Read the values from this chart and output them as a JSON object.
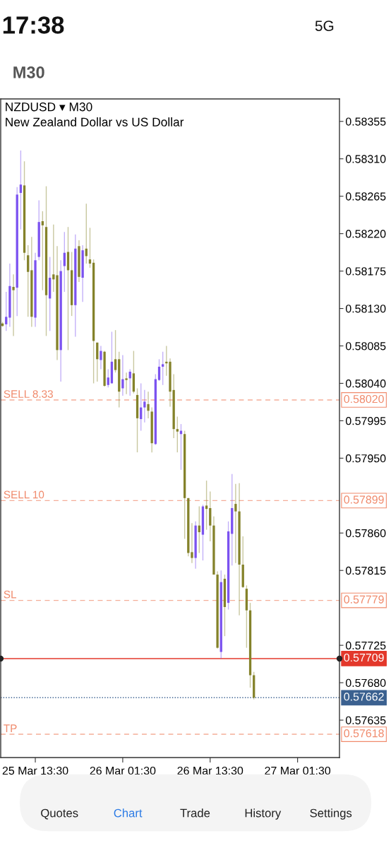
{
  "chart_data": {
    "type": "candlestick",
    "title": "NZDUSD ▾ M30",
    "subtitle": "New Zealand Dollar vs US Dollar",
    "categories": [
      null,
      null,
      null,
      null,
      null,
      null,
      null,
      null,
      null,
      "25 Mar 13:30",
      null,
      null,
      null,
      null,
      null,
      null,
      null,
      null,
      null,
      null,
      null,
      null,
      null,
      null,
      null,
      null,
      null,
      null,
      null,
      null,
      null,
      null,
      null,
      "26 Mar 01:30",
      null,
      null,
      null,
      null,
      null,
      null,
      null,
      null,
      null,
      null,
      null,
      null,
      null,
      null,
      null,
      null,
      null,
      null,
      null,
      null,
      null,
      null,
      null,
      "26 Mar 13:30",
      null,
      null,
      null,
      null,
      null,
      null,
      null,
      null,
      null,
      null,
      null,
      null,
      null,
      null,
      null,
      null,
      null,
      null,
      null,
      null,
      null,
      null,
      null,
      "27 Mar 01:30",
      null,
      null,
      null,
      null,
      null,
      null,
      null,
      null,
      null,
      null,
      null
    ],
    "ohlc": [
      [
        0.58112,
        0.58114,
        0.58108,
        0.58109
      ],
      [
        0.58111,
        0.5815,
        0.58103,
        0.5812
      ],
      [
        0.58119,
        0.58184,
        0.58108,
        0.58157
      ],
      [
        0.58156,
        0.58171,
        0.58097,
        0.58152
      ],
      [
        0.58155,
        0.58276,
        0.58121,
        0.58267
      ],
      [
        0.58269,
        0.5832,
        0.58225,
        0.58279
      ],
      [
        0.58278,
        0.58307,
        0.58188,
        0.58197
      ],
      [
        0.58194,
        0.58206,
        0.5812,
        0.58174
      ],
      [
        0.58176,
        0.58216,
        0.58108,
        0.5812
      ],
      [
        0.58119,
        0.58197,
        0.58108,
        0.58188
      ],
      [
        0.58192,
        0.5826,
        0.58188,
        0.58234
      ],
      [
        0.58235,
        0.58247,
        0.58152,
        0.5823
      ],
      [
        0.58228,
        0.58277,
        0.58097,
        0.58146
      ],
      [
        0.58142,
        0.58192,
        0.58103,
        0.58167
      ],
      [
        0.58171,
        0.58231,
        0.5815,
        0.58165
      ],
      [
        0.5817,
        0.58205,
        0.58068,
        0.5808
      ],
      [
        0.5808,
        0.58188,
        0.58042,
        0.58175
      ],
      [
        0.58181,
        0.58222,
        0.5815,
        0.58197
      ],
      [
        0.58198,
        0.58228,
        0.5808,
        0.58176
      ],
      [
        0.58176,
        0.58198,
        0.58121,
        0.58134
      ],
      [
        0.58134,
        0.58219,
        0.58096,
        0.58202
      ],
      [
        0.58205,
        0.58212,
        0.58162,
        0.58168
      ],
      [
        0.58167,
        0.58206,
        0.58138,
        0.582
      ],
      [
        0.58202,
        0.58256,
        0.58184,
        0.58193
      ],
      [
        0.58189,
        0.58227,
        0.58179,
        0.58184
      ],
      [
        0.58185,
        0.58189,
        0.5804,
        0.58091
      ],
      [
        0.58089,
        0.58089,
        0.58042,
        0.58069
      ],
      [
        0.58068,
        0.58085,
        0.58057,
        0.58079
      ],
      [
        0.58078,
        0.58079,
        0.58036,
        0.58037
      ],
      [
        0.58038,
        0.58057,
        0.58035,
        0.58047
      ],
      [
        0.5804,
        0.58102,
        0.5804,
        0.58066
      ],
      [
        0.58069,
        0.58104,
        0.58053,
        0.58056
      ],
      [
        0.58069,
        0.58078,
        0.58011,
        0.5803
      ],
      [
        0.58034,
        0.58074,
        0.58025,
        0.58045
      ],
      [
        0.58046,
        0.58053,
        0.58027,
        0.58044
      ],
      [
        0.58046,
        0.58057,
        0.58025,
        0.58054
      ],
      [
        0.58052,
        0.58079,
        0.58028,
        0.5803
      ],
      [
        0.58026,
        0.58034,
        0.57957,
        0.57998
      ],
      [
        0.57997,
        0.5804,
        0.57983,
        0.58011
      ],
      [
        0.58011,
        0.58032,
        0.57993,
        0.58018
      ],
      [
        0.58015,
        0.5803,
        0.57998,
        0.58007
      ],
      [
        0.58006,
        0.58011,
        0.57957,
        0.57968
      ],
      [
        0.57967,
        0.58051,
        0.57966,
        0.58045
      ],
      [
        0.58044,
        0.58069,
        0.58043,
        0.5806
      ],
      [
        0.5806,
        0.58078,
        0.58038,
        0.58063
      ],
      [
        0.58066,
        0.58085,
        0.58049,
        0.58064
      ],
      [
        0.58066,
        0.5807,
        0.58012,
        0.5803
      ],
      [
        0.58032,
        0.58051,
        0.57974,
        0.57985
      ],
      [
        0.57985,
        0.58,
        0.57957,
        0.57982
      ],
      [
        0.57979,
        0.57991,
        0.57936,
        0.57983
      ],
      [
        0.57979,
        0.57983,
        0.57853,
        0.57902
      ],
      [
        0.57902,
        0.57902,
        0.57832,
        0.57836
      ],
      [
        0.57837,
        0.57872,
        0.57824,
        0.5783
      ],
      [
        0.5783,
        0.57874,
        0.57817,
        0.57869
      ],
      [
        0.57869,
        0.57892,
        0.57836,
        0.57861
      ],
      [
        0.57858,
        0.57894,
        0.57827,
        0.57892
      ],
      [
        0.57893,
        0.57923,
        0.57864,
        0.57889
      ],
      [
        0.5789,
        0.5791,
        0.5785,
        0.57869
      ],
      [
        0.57869,
        0.5788,
        0.5781,
        0.5781
      ],
      [
        0.5781,
        0.57814,
        0.57721,
        0.57722
      ],
      [
        0.57717,
        0.57815,
        0.57709,
        0.57801
      ],
      [
        0.57805,
        0.5781,
        0.57736,
        0.57771
      ],
      [
        0.57776,
        0.57874,
        0.57768,
        0.57862
      ],
      [
        0.57859,
        0.57931,
        0.57821,
        0.5789
      ],
      [
        0.57895,
        0.57919,
        0.57824,
        0.57886
      ],
      [
        0.57886,
        0.5792,
        0.57761,
        0.57822
      ],
      [
        0.57822,
        0.57856,
        0.57794,
        0.57795
      ],
      [
        0.57793,
        0.57797,
        0.57722,
        0.57767
      ],
      [
        0.57767,
        0.57776,
        0.57674,
        0.57689
      ],
      [
        0.57689,
        0.57693,
        0.5766,
        0.57662
      ],
      null,
      null,
      null,
      null,
      null,
      null,
      null,
      null,
      null,
      null,
      null,
      null,
      null,
      null,
      null,
      null,
      null,
      null,
      null,
      null,
      null,
      null,
      null
    ],
    "colors": [
      "#84822a",
      "#7b52f0",
      "#7b52f0",
      "#84822a",
      "#7b52f0",
      "#7b52f0",
      "#84822a",
      "#84822a",
      "#84822a",
      "#7b52f0",
      "#7b52f0",
      "#84822a",
      "#84822a",
      "#7b52f0",
      "#84822a",
      "#84822a",
      "#7b52f0",
      "#7b52f0",
      "#84822a",
      "#84822a",
      "#7b52f0",
      "#84822a",
      "#7b52f0",
      "#84822a",
      "#84822a",
      "#84822a",
      "#84822a",
      "#7b52f0",
      "#84822a",
      "#7b52f0",
      "#7b52f0",
      "#84822a",
      "#84822a",
      "#7b52f0",
      "#84822a",
      "#7b52f0",
      "#84822a",
      "#84822a",
      "#7b52f0",
      "#7b52f0",
      "#84822a",
      "#84822a",
      "#7b52f0",
      "#7b52f0",
      "#7b52f0",
      "#84822a",
      "#84822a",
      "#84822a",
      "#84822a",
      "#7b52f0",
      "#84822a",
      "#84822a",
      "#84822a",
      "#7b52f0",
      "#84822a",
      "#7b52f0",
      "#84822a",
      "#84822a",
      "#84822a",
      "#84822a",
      "#7b52f0",
      "#84822a",
      "#7b52f0",
      "#7b52f0",
      "#84822a",
      "#84822a",
      "#84822a",
      "#84822a",
      "#84822a",
      "#84822a",
      null,
      null,
      null,
      null,
      null,
      null,
      null,
      null,
      null,
      null,
      null,
      null,
      null,
      null,
      null,
      null,
      null,
      null,
      null,
      null,
      null,
      null,
      null
    ],
    "ylim": [
      0.5759,
      0.58382
    ],
    "yticks": [
      {
        "value": 0.58355,
        "label": "0.58355"
      },
      {
        "value": 0.5831,
        "label": "0.58310"
      },
      {
        "value": 0.58265,
        "label": "0.58265"
      },
      {
        "value": 0.5822,
        "label": "0.58220"
      },
      {
        "value": 0.58175,
        "label": "0.58175"
      },
      {
        "value": 0.5813,
        "label": "0.58130"
      },
      {
        "value": 0.58085,
        "label": "0.58085"
      },
      {
        "value": 0.5804,
        "label": "0.58040"
      },
      {
        "value": 0.57995,
        "label": "0.57995"
      },
      {
        "value": 0.5795,
        "label": "0.57950"
      },
      {
        "value": 0.5786,
        "label": "0.57860"
      },
      {
        "value": 0.57815,
        "label": "0.57815"
      },
      {
        "value": 0.57725,
        "label": "0.57725"
      },
      {
        "value": 0.5768,
        "label": "0.57680"
      },
      {
        "value": 0.57635,
        "label": "0.57635"
      }
    ],
    "ref_lines": [
      {
        "axis": "y",
        "value": 0.5802,
        "label": "SELL 8.33",
        "color": "#f08a6c",
        "line_style": "dashed"
      },
      {
        "axis": "y",
        "value": 0.57899,
        "label": "SELL 10",
        "color": "#f08a6c",
        "line_style": "dashed"
      },
      {
        "axis": "y",
        "value": 0.57779,
        "label": "SL",
        "color": "#f08a6c",
        "line_style": "dashed"
      },
      {
        "axis": "y",
        "value": 0.57709,
        "color": "#e3382b",
        "line_style": "solid"
      },
      {
        "axis": "y",
        "value": 0.57662,
        "color": "#3b6190",
        "line_style": "dotted"
      },
      {
        "axis": "y",
        "value": 0.57618,
        "label": "TP",
        "color": "#f08a6c",
        "line_style": "dashed"
      }
    ],
    "annotations": [
      "17:38",
      "5G",
      "M30",
      "Quotes",
      "Chart",
      "Trade",
      "History",
      "Settings",
      "0.58020",
      "0.57899",
      "0.57779",
      "0.57709",
      "0.57662",
      "0.57618"
    ]
  }
}
